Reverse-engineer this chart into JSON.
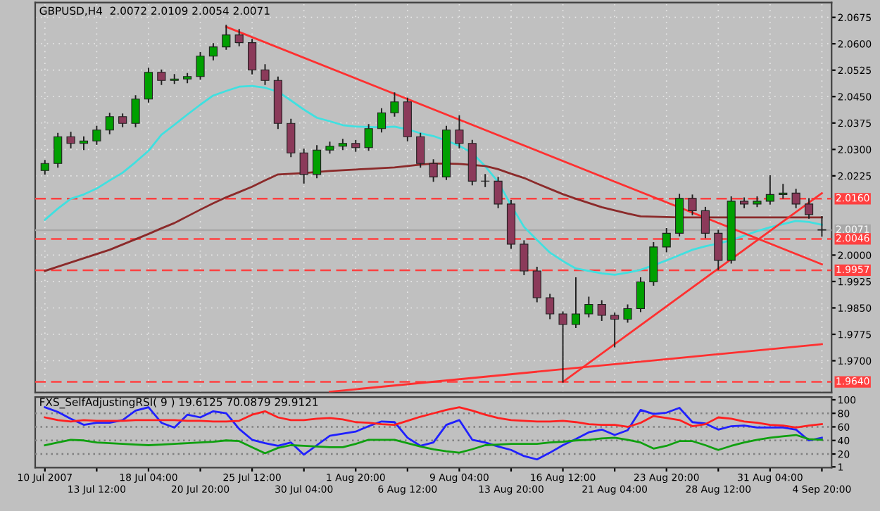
{
  "chart_data": [
    {
      "type": "candlestick",
      "title": "GBPUSD,H4  2.0072 2.0109 2.0054 2.0071",
      "ohlc": [
        [
          2.024,
          2.0268,
          2.023,
          2.026
        ],
        [
          2.026,
          2.0345,
          2.025,
          2.0336
        ],
        [
          2.0336,
          2.0348,
          2.0305,
          2.0317
        ],
        [
          2.0317,
          2.0335,
          2.03,
          2.0324
        ],
        [
          2.0324,
          2.0365,
          2.0315,
          2.0355
        ],
        [
          2.0355,
          2.0402,
          2.0345,
          2.0393
        ],
        [
          2.0393,
          2.04,
          2.0365,
          2.0374
        ],
        [
          2.0374,
          2.0452,
          2.0365,
          2.0443
        ],
        [
          2.0443,
          2.053,
          2.0435,
          2.0519
        ],
        [
          2.0519,
          2.0525,
          2.0485,
          2.0496
        ],
        [
          2.0496,
          2.0512,
          2.0488,
          2.05
        ],
        [
          2.05,
          2.0515,
          2.049,
          2.0507
        ],
        [
          2.0507,
          2.0575,
          2.05,
          2.0565
        ],
        [
          2.0565,
          2.06,
          2.0555,
          2.0591
        ],
        [
          2.0591,
          2.0652,
          2.0585,
          2.0625
        ],
        [
          2.0625,
          2.064,
          2.0595,
          2.0603
        ],
        [
          2.0603,
          2.0612,
          2.0515,
          2.0526
        ],
        [
          2.0526,
          2.054,
          2.0485,
          2.0496
        ],
        [
          2.0496,
          2.0505,
          2.036,
          2.0374
        ],
        [
          2.0374,
          2.0385,
          2.028,
          2.029
        ],
        [
          2.029,
          2.03,
          2.0205,
          2.0229
        ],
        [
          2.0229,
          2.031,
          2.022,
          2.0298
        ],
        [
          2.0298,
          2.032,
          2.029,
          2.0309
        ],
        [
          2.0309,
          2.0328,
          2.03,
          2.0317
        ],
        [
          2.0317,
          2.0325,
          2.0295,
          2.0305
        ],
        [
          2.0305,
          2.037,
          2.0298,
          2.0359
        ],
        [
          2.0359,
          2.0415,
          2.035,
          2.0404
        ],
        [
          2.0404,
          2.046,
          2.0395,
          2.0435
        ],
        [
          2.0435,
          2.0445,
          2.0325,
          2.0336
        ],
        [
          2.0336,
          2.0345,
          2.025,
          2.026
        ],
        [
          2.026,
          2.027,
          2.021,
          2.0222
        ],
        [
          2.0222,
          2.0365,
          2.0215,
          2.0355
        ],
        [
          2.0355,
          2.0395,
          2.0305,
          2.0317
        ],
        [
          2.0317,
          2.0325,
          2.02,
          2.021
        ],
        [
          2.021,
          2.0228,
          2.0195,
          2.021
        ],
        [
          2.021,
          2.022,
          2.0135,
          2.0145
        ],
        [
          2.0145,
          2.0155,
          2.002,
          2.0031
        ],
        [
          2.0031,
          2.004,
          1.9945,
          1.9955
        ],
        [
          1.9955,
          1.9965,
          1.9868,
          1.9879
        ],
        [
          1.9879,
          1.9888,
          1.982,
          1.9833
        ],
        [
          1.9833,
          1.9838,
          1.964,
          1.9803
        ],
        [
          1.9803,
          1.9935,
          1.9795,
          1.9833
        ],
        [
          1.9833,
          1.988,
          1.9825,
          1.986
        ],
        [
          1.986,
          1.987,
          1.9815,
          1.9829
        ],
        [
          1.9829,
          1.9835,
          1.974,
          1.9818
        ],
        [
          1.9818,
          1.9858,
          1.981,
          1.9848
        ],
        [
          1.9848,
          1.9935,
          1.984,
          1.9924
        ],
        [
          1.9924,
          2.0035,
          1.9915,
          2.0023
        ],
        [
          2.0023,
          2.0075,
          2.001,
          2.0062
        ],
        [
          2.0062,
          2.0172,
          2.0055,
          2.0161
        ],
        [
          2.0161,
          2.017,
          2.0115,
          2.0126
        ],
        [
          2.0126,
          2.0135,
          2.005,
          2.0062
        ],
        [
          2.0062,
          2.007,
          1.996,
          1.9985
        ],
        [
          1.9985,
          2.0165,
          1.9978,
          2.0153
        ],
        [
          2.0153,
          2.0162,
          2.0135,
          2.0145
        ],
        [
          2.0145,
          2.0165,
          2.0138,
          2.0153
        ],
        [
          2.0153,
          2.0225,
          2.0145,
          2.0172
        ],
        [
          2.0172,
          2.02,
          2.0162,
          2.0176
        ],
        [
          2.0176,
          2.0186,
          2.0135,
          2.0145
        ],
        [
          2.0145,
          2.016,
          2.0105,
          2.0115
        ],
        [
          2.0072,
          2.0109,
          2.0054,
          2.0071
        ]
      ],
      "colors": [
        "#00a000",
        "#00a000",
        "#8b3a5a",
        "#00a000",
        "#00a000",
        "#00a000",
        "#8b3a5a",
        "#00a000",
        "#00a000",
        "#8b3a5a",
        "#00a000",
        "#00a000",
        "#00a000",
        "#00a000",
        "#00a000",
        "#8b3a5a",
        "#8b3a5a",
        "#8b3a5a",
        "#8b3a5a",
        "#8b3a5a",
        "#8b3a5a",
        "#00a000",
        "#00a000",
        "#00a000",
        "#8b3a5a",
        "#00a000",
        "#00a000",
        "#00a000",
        "#8b3a5a",
        "#8b3a5a",
        "#8b3a5a",
        "#00a000",
        "#8b3a5a",
        "#8b3a5a",
        "#8b3a5a",
        "#8b3a5a",
        "#8b3a5a",
        "#8b3a5a",
        "#8b3a5a",
        "#8b3a5a",
        "#8b3a5a",
        "#00a000",
        "#00a000",
        "#8b3a5a",
        "#8b3a5a",
        "#00a000",
        "#00a000",
        "#00a000",
        "#00a000",
        "#00a000",
        "#8b3a5a",
        "#8b3a5a",
        "#8b3a5a",
        "#00a000",
        "#8b3a5a",
        "#00a000",
        "#00a000",
        "#00a000",
        "#8b3a5a",
        "#8b3a5a",
        "#8b3a5a"
      ],
      "series": [
        {
          "type": "line",
          "color": "#40e0e0",
          "values": [
            2.01,
            2.0132,
            2.016,
            2.0172,
            2.0189,
            2.0212,
            2.0234,
            2.0264,
            2.0296,
            2.0342,
            2.037,
            2.0399,
            2.0427,
            2.0453,
            2.0466,
            2.0478,
            2.048,
            2.0475,
            2.0464,
            2.0439,
            2.0413,
            2.039,
            2.038,
            2.0369,
            2.0365,
            2.0364,
            2.0363,
            2.0365,
            2.0357,
            2.0346,
            2.0338,
            2.0325,
            2.031,
            2.029,
            2.0252,
            2.0208,
            2.0141,
            2.008,
            2.0043,
            2.0007,
            1.9983,
            1.9962,
            1.9955,
            1.9948,
            1.9944,
            1.995,
            1.9958,
            1.9971,
            1.9985,
            2.0,
            2.0015,
            2.0025,
            2.0033,
            2.0042,
            2.0055,
            2.0068,
            2.0079,
            2.0088,
            2.0097,
            2.0094,
            2.0086
          ]
        },
        {
          "type": "line",
          "color": "#8b2a2a",
          "values": [
            1.9955,
            1.9967,
            1.9979,
            1.9991,
            2.0003,
            2.0015,
            2.003,
            2.0045,
            2.006,
            2.0076,
            2.0091,
            2.011,
            2.0129,
            2.0147,
            2.0164,
            2.0179,
            2.0194,
            2.0212,
            2.0229,
            2.0231,
            2.0233,
            2.0236,
            2.0239,
            2.0241,
            2.0243,
            2.0245,
            2.0247,
            2.0249,
            2.0253,
            2.0257,
            2.026,
            2.026,
            2.0259,
            2.0256,
            2.0253,
            2.0244,
            2.0231,
            2.0219,
            2.0203,
            2.0188,
            2.0173,
            2.016,
            2.0148,
            2.0136,
            2.0127,
            2.0118,
            2.011,
            2.0109,
            2.0108,
            2.0107,
            2.0107,
            2.0107,
            2.0107,
            2.0107,
            2.0107,
            2.0107,
            2.0107,
            2.0107,
            2.0107,
            2.0107,
            2.0107
          ]
        },
        {
          "type": "line",
          "color": "#ff3030",
          "values": [
            null,
            null,
            null,
            null,
            null,
            null,
            null,
            null,
            null,
            null,
            null,
            null,
            null,
            null,
            2.0648,
            null,
            null,
            null,
            null,
            null,
            null,
            null,
            null,
            null,
            null,
            null,
            null,
            null,
            null,
            null,
            null,
            null,
            null,
            null,
            null,
            null,
            null,
            null,
            null,
            null,
            null,
            null,
            null,
            null,
            null,
            null,
            null,
            null,
            null,
            null,
            null,
            null,
            null,
            null,
            null,
            null,
            null,
            null,
            null,
            null,
            1.9974
          ]
        },
        {
          "type": "line",
          "color": "#ff3030",
          "values": [
            null,
            null,
            null,
            null,
            null,
            null,
            null,
            null,
            null,
            null,
            null,
            null,
            null,
            null,
            null,
            null,
            null,
            null,
            null,
            null,
            null,
            null,
            null,
            null,
            null,
            null,
            null,
            null,
            null,
            null,
            null,
            null,
            null,
            null,
            null,
            null,
            null,
            null,
            null,
            null,
            1.964,
            null,
            null,
            null,
            null,
            null,
            null,
            null,
            null,
            null,
            null,
            null,
            null,
            null,
            null,
            null,
            null,
            null,
            null,
            null,
            2.0176
          ]
        },
        {
          "type": "line",
          "color": "#ff3030",
          "values": [
            null,
            null,
            null,
            null,
            null,
            null,
            null,
            null,
            null,
            null,
            null,
            null,
            null,
            null,
            null,
            null,
            null,
            null,
            null,
            null,
            null,
            null,
            1.9612,
            null,
            null,
            null,
            null,
            null,
            null,
            null,
            null,
            null,
            null,
            null,
            null,
            null,
            null,
            null,
            null,
            null,
            null,
            null,
            null,
            null,
            null,
            null,
            null,
            null,
            null,
            null,
            null,
            null,
            null,
            null,
            null,
            null,
            null,
            null,
            null,
            null,
            1.9747
          ]
        }
      ],
      "ref_lines": [
        {
          "axis": "y",
          "value": 2.016,
          "label": "2.0160",
          "color": "#ff4040",
          "line_style": "dashed"
        },
        {
          "axis": "y",
          "value": 2.0071,
          "label": "2.0071",
          "color": "#a8a8a8",
          "line_style": "solid"
        },
        {
          "axis": "y",
          "value": 2.0046,
          "label": "2.0046",
          "color": "#ff4040",
          "line_style": "dashed"
        },
        {
          "axis": "y",
          "value": 1.9957,
          "label": "1.9957",
          "color": "#ff4040",
          "line_style": "dashed"
        },
        {
          "axis": "y",
          "value": 1.964,
          "label": "1.9640",
          "color": "#ff4040",
          "line_style": "dashed"
        }
      ],
      "ylim": [
        1.961,
        2.0717
      ],
      "yticks": [
        {
          "value": 2.0675,
          "label": "2.0675"
        },
        {
          "value": 2.06,
          "label": "2.0600"
        },
        {
          "value": 2.0525,
          "label": "2.0525"
        },
        {
          "value": 2.045,
          "label": "2.0450"
        },
        {
          "value": 2.0375,
          "label": "2.0375"
        },
        {
          "value": 2.03,
          "label": "2.0300"
        },
        {
          "value": 2.0225,
          "label": "2.0225"
        },
        {
          "value": 2.0,
          "label": "2.0000"
        },
        {
          "value": 1.9925,
          "label": "1.9925"
        },
        {
          "value": 1.985,
          "label": "1.9850"
        },
        {
          "value": 1.9775,
          "label": "1.9775"
        },
        {
          "value": 1.97,
          "label": "1.9700"
        }
      ],
      "tick_labels": "y",
      "grid": true
    },
    {
      "type": "line",
      "title": "FXS_SelfAdjustingRSI( 9 ) 19.6125 70.0879 29.9121",
      "categories": [
        "10 Jul 2007",
        null,
        null,
        null,
        "13 Jul 12:00",
        null,
        null,
        null,
        "18 Jul 04:00",
        null,
        null,
        null,
        "20 Jul 20:00",
        null,
        null,
        null,
        "25 Jul 12:00",
        null,
        null,
        null,
        "30 Jul 04:00",
        null,
        null,
        null,
        "1 Aug 20:00",
        null,
        null,
        null,
        "6 Aug 12:00",
        null,
        null,
        null,
        "9 Aug 04:00",
        null,
        null,
        null,
        "13 Aug 20:00",
        null,
        null,
        null,
        "16 Aug 12:00",
        null,
        null,
        null,
        "21 Aug 04:00",
        null,
        null,
        null,
        "23 Aug 20:00",
        null,
        null,
        null,
        "28 Aug 12:00",
        null,
        null,
        null,
        "31 Aug 04:00",
        null,
        null,
        null,
        "4 Sep 20:00"
      ],
      "series": [
        {
          "color": "#2020ff",
          "values": [
            89,
            82,
            72,
            63,
            66,
            66,
            70,
            84,
            89,
            66,
            59,
            78,
            74,
            83,
            80,
            57,
            41,
            36,
            32,
            37,
            19,
            33,
            47,
            50,
            53,
            61,
            68,
            67,
            44,
            32,
            37,
            63,
            70,
            41,
            37,
            31,
            26,
            17,
            12,
            22,
            33,
            42,
            52,
            56,
            48,
            55,
            85,
            79,
            81,
            88,
            67,
            65,
            56,
            61,
            62,
            59,
            59,
            59,
            56,
            40,
            44
          ]
        },
        {
          "color": "#ff2020",
          "values": [
            74,
            70,
            68,
            70,
            69,
            69,
            69,
            70,
            70,
            70,
            70,
            69,
            69,
            68,
            68,
            69,
            78,
            83,
            74,
            70,
            70,
            72,
            73,
            71,
            67,
            66,
            64,
            63,
            69,
            75,
            80,
            85,
            89,
            84,
            78,
            73,
            70,
            69,
            68,
            68,
            69,
            67,
            64,
            63,
            63,
            60,
            66,
            76,
            73,
            70,
            61,
            64,
            74,
            72,
            68,
            66,
            63,
            62,
            59,
            62,
            64
          ]
        },
        {
          "color": "#10a010",
          "values": [
            33,
            37,
            41,
            40,
            37,
            36,
            35,
            34,
            33,
            34,
            35,
            36,
            37,
            38,
            40,
            39,
            30,
            21,
            29,
            33,
            32,
            31,
            30,
            30,
            35,
            41,
            41,
            41,
            36,
            31,
            27,
            24,
            22,
            27,
            33,
            34,
            35,
            35,
            35,
            37,
            38,
            40,
            41,
            43,
            44,
            41,
            37,
            28,
            32,
            39,
            39,
            33,
            26,
            32,
            37,
            41,
            44,
            46,
            48,
            42,
            41
          ]
        }
      ],
      "ref_lines": [
        {
          "axis": "y",
          "value": 80,
          "color": "#808080",
          "line_style": "dotted"
        },
        {
          "axis": "y",
          "value": 60,
          "color": "#808080",
          "line_style": "dotted"
        },
        {
          "axis": "y",
          "value": 40,
          "color": "#808080",
          "line_style": "dotted"
        },
        {
          "axis": "y",
          "value": 20,
          "color": "#808080",
          "line_style": "dotted"
        }
      ],
      "ylim": [
        0,
        104
      ],
      "yticks": [
        100,
        80,
        60,
        40,
        20,
        1
      ]
    }
  ]
}
